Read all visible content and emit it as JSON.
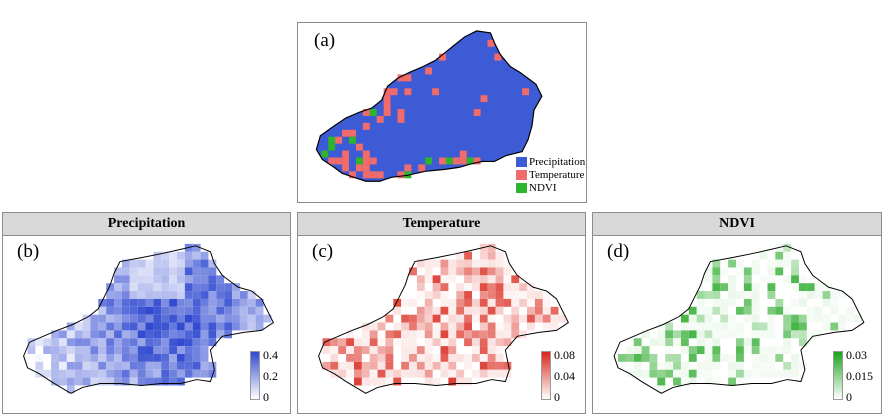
{
  "panel_a": {
    "label": "(a)",
    "legend": [
      {
        "name": "Precipitation",
        "color": "#3d5bd4"
      },
      {
        "name": "Temperature",
        "color": "#f26b6b"
      },
      {
        "name": "NDVI",
        "color": "#2db52d"
      }
    ]
  },
  "panels": [
    {
      "title": "Precipitation",
      "label": "(b)",
      "colormap": "white-blue",
      "color": "#3049d0",
      "ticks": [
        "0.4",
        "0.2",
        "0"
      ],
      "range": [
        0,
        0.4
      ]
    },
    {
      "title": "Temperature",
      "label": "(c)",
      "colormap": "white-red",
      "color": "#d9261a",
      "ticks": [
        "0.08",
        "0.04",
        "0"
      ],
      "range": [
        0,
        0.08
      ]
    },
    {
      "title": "NDVI",
      "label": "(d)",
      "colormap": "white-green",
      "color": "#1aa31a",
      "ticks": [
        "0.03",
        "0.015",
        "0"
      ],
      "range": [
        0,
        0.03
      ]
    }
  ]
}
